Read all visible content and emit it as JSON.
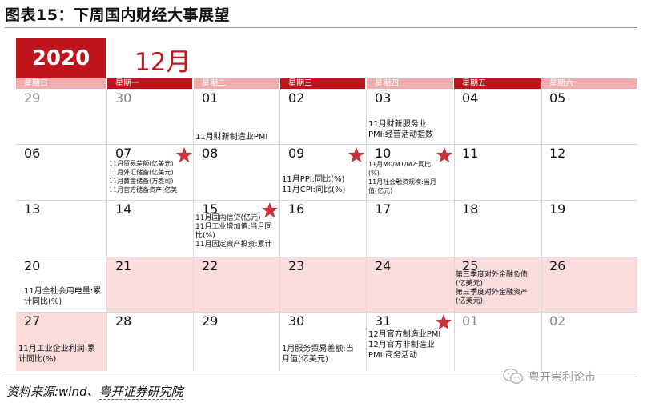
{
  "title": "图表15：下周国内财经大事展望",
  "calendar": {
    "year": "2020",
    "month": "12月",
    "weekdays": [
      "星期日",
      "星期一",
      "星期二",
      "星期三",
      "星期四",
      "星期五",
      "星期六"
    ],
    "weeks": [
      [
        "29",
        "30",
        "01",
        "02",
        "03",
        "04",
        "05"
      ],
      [
        "06",
        "07",
        "08",
        "09",
        "10",
        "11",
        "12"
      ],
      [
        "13",
        "14",
        "15",
        "16",
        "17",
        "18",
        "19"
      ],
      [
        "20",
        "21",
        "22",
        "23",
        "24",
        "25",
        "26"
      ],
      [
        "27",
        "28",
        "29",
        "30",
        "31",
        "01",
        "02"
      ]
    ],
    "events": {
      "dec01": "11月财新制造业PMI",
      "dec03": "11月财新服务业\nPMI:经营活动指数",
      "dec07": "11月贸易差额(亿美元)\n11月外汇储备(亿美元)\n11月黄金储备(万盎司)\n11月官方储备资产(亿美",
      "dec09": "11月PPI:同比(%)\n11月CPI:同比(%)",
      "dec10": "11月M0/M1/M2:同比\n(%)\n11月社会融资规模:当月\n值(亿元)",
      "dec15": "11月国内信贷(亿元)\n11月工业增加值:当月同\n比(%)\n11月固定资产投资:累计",
      "dec20": "11月全社会用电量:累\n计同比(%)",
      "dec25": "第三季度对外金融负债\n(亿美元)\n第三季度对外金融资产\n(亿美元)",
      "dec27": "11月工业企业利润:累\n计同比(%)",
      "dec30": "1月服务贸易差额:当\n月值(亿美元)",
      "dec31": "12月官方制造业PMI\n 12月官方非制造业\nPMI:商务活动"
    }
  },
  "source": {
    "prefix": "资料来源:wind、",
    "org": "粤开证券研究院"
  },
  "watermark": "粤开崇利论市",
  "colors": {
    "accent": "#c0141c",
    "weekday_light": "#f0adad",
    "highlight": "#fadcdc",
    "star": "#c8323a"
  }
}
